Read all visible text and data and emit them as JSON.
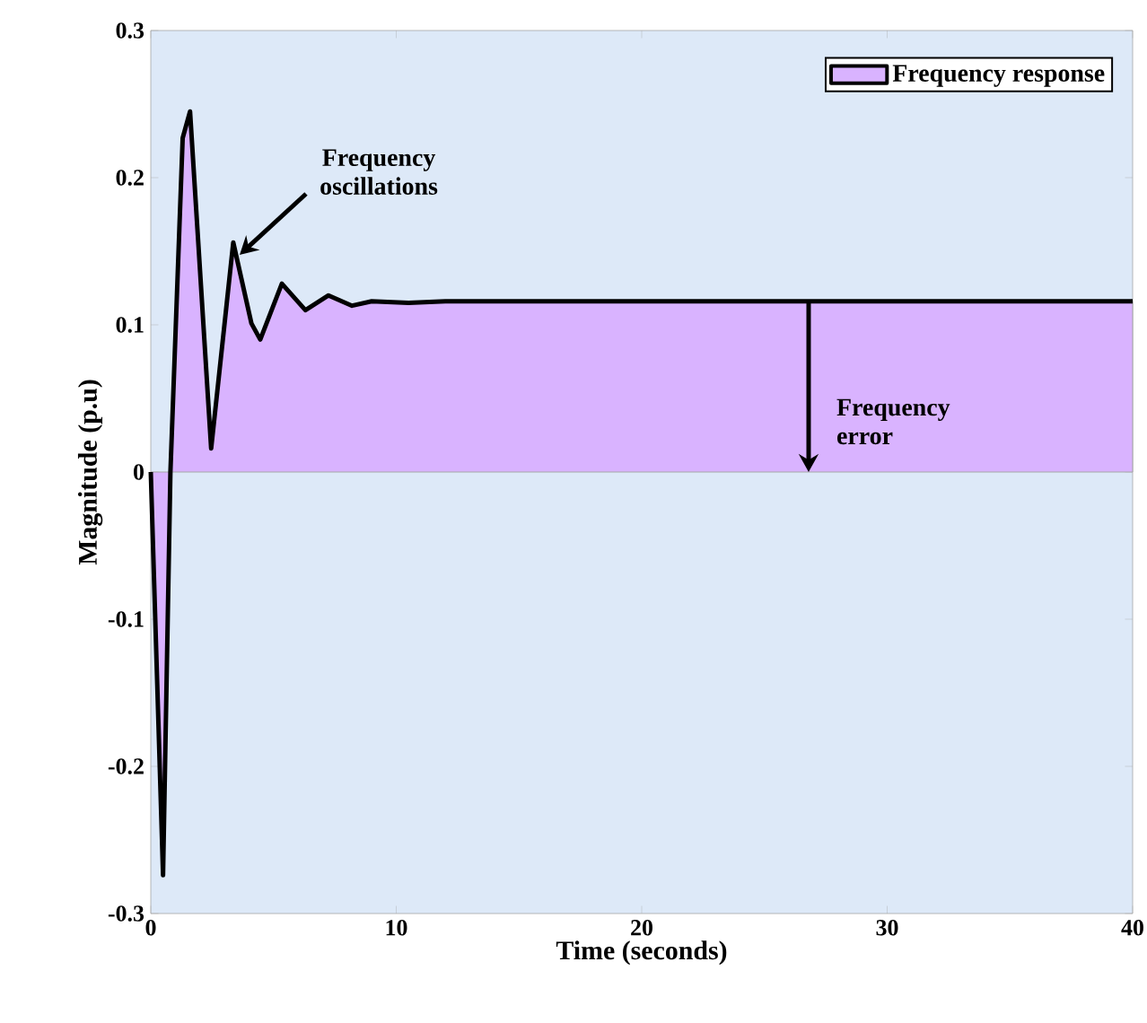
{
  "chart_data": {
    "type": "area",
    "xlabel": "Time (seconds)",
    "ylabel": "Magnitude (p.u)",
    "series": [
      {
        "name": "Frequency response",
        "color": "#d9b3ff",
        "x": [
          0,
          0.5,
          0.8,
          1.3,
          1.6,
          2.46,
          3.36,
          4.1,
          4.46,
          5.34,
          6.3,
          7.24,
          8.2,
          9.0,
          10.5,
          12,
          15,
          20,
          25,
          30,
          35,
          40
        ],
        "values": [
          0,
          -0.274,
          0,
          0.227,
          0.245,
          0.016,
          0.156,
          0.101,
          0.09,
          0.128,
          0.11,
          0.12,
          0.113,
          0.116,
          0.115,
          0.116,
          0.116,
          0.116,
          0.116,
          0.116,
          0.116,
          0.116
        ]
      }
    ],
    "xlim": [
      0,
      40
    ],
    "ylim": [
      -0.3,
      0.3
    ],
    "xticks": [
      0,
      10,
      20,
      30,
      40
    ],
    "yticks": [
      -0.3,
      -0.2,
      -0.1,
      0,
      0.1,
      0.2,
      0.3
    ],
    "legend": "top right",
    "grid": false,
    "annotations": [
      {
        "text": "Frequency oscillations",
        "x": 3.4,
        "y": 0.15
      },
      {
        "text": "Frequency error",
        "x": 26.8,
        "y": 0
      }
    ]
  }
}
